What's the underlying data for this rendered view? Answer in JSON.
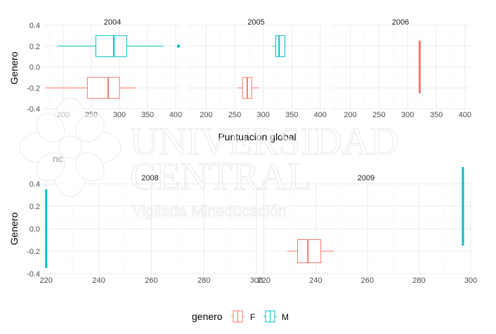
{
  "chart_data": [
    {
      "type": "boxplot",
      "orientation": "horizontal",
      "panels": [
        {
          "strip": "2004",
          "boxes": [
            {
              "group": "M",
              "y": 0.2,
              "whisker_low": 190,
              "q1": 258,
              "median": 290,
              "q3": 313,
              "whisker_high": 378,
              "outliers": [
                405
              ]
            },
            {
              "group": "F",
              "y": -0.2,
              "whisker_low": 168,
              "q1": 243,
              "median": 280,
              "q3": 300,
              "whisker_high": 330,
              "outliers": []
            }
          ]
        },
        {
          "strip": "2005",
          "boxes": [
            {
              "group": "M",
              "y": 0.2,
              "whisker_low": 317,
              "q1": 322,
              "median": 328,
              "q3": 338,
              "whisker_high": 340,
              "outliers": []
            },
            {
              "group": "F",
              "y": -0.2,
              "whisker_low": 255,
              "q1": 264,
              "median": 272,
              "q3": 280,
              "whisker_high": 292,
              "outliers": []
            }
          ]
        },
        {
          "strip": "2006",
          "boxes": [
            {
              "group": "F",
              "y": 0.0,
              "whisker_low": 321,
              "q1": 321,
              "median": 321,
              "q3": 321,
              "whisker_high": 321,
              "outliers": []
            }
          ]
        }
      ],
      "xlabel": "Puntuacion global",
      "ylabel": "Genero",
      "xlim": [
        165,
        410
      ],
      "xticks": [
        "200",
        "250",
        "300",
        "350",
        "400"
      ],
      "ylim": [
        -0.4,
        0.4
      ],
      "yticks": [
        "-0.4",
        "-0.2",
        "0.0",
        "0.2",
        "0.4"
      ]
    },
    {
      "type": "boxplot",
      "orientation": "horizontal",
      "panels": [
        {
          "strip": "2008",
          "boxes": [
            {
              "group": "M",
              "y": 0.0,
              "whisker_low": 220,
              "q1": 220,
              "median": 220,
              "q3": 220,
              "whisker_high": 220,
              "outliers": []
            }
          ]
        },
        {
          "strip": "2009",
          "boxes": [
            {
              "group": "F",
              "y": -0.2,
              "whisker_low": 229,
              "q1": 233,
              "median": 237,
              "q3": 242,
              "whisker_high": 247,
              "outliers": []
            },
            {
              "group": "M",
              "y": 0.2,
              "whisker_low": 297,
              "q1": 297,
              "median": 297,
              "q3": 297,
              "whisker_high": 297,
              "outliers": []
            }
          ]
        }
      ],
      "left_title_fragment": "nc",
      "ylabel": "Genero",
      "xlim": [
        219,
        300
      ],
      "xticks": [
        "220",
        "240",
        "260",
        "280",
        "300"
      ],
      "ylim": [
        -0.4,
        0.4
      ],
      "yticks": [
        "-0.4",
        "-0.2",
        "0.0",
        "0.2",
        "0.4"
      ]
    }
  ],
  "legend": {
    "title": "genero",
    "position": "bottom",
    "items": [
      {
        "label": "F",
        "color": "#F8766D"
      },
      {
        "label": "M",
        "color": "#00BFC4"
      }
    ]
  },
  "watermark": {
    "line1": "UNIVERSIDAD",
    "line2": "CENTRAL",
    "line3": "Vigilada Mineducación"
  },
  "colors": {
    "F": "#F8766D",
    "M": "#00BFC4",
    "grid": "#ebebeb"
  },
  "grid": true
}
